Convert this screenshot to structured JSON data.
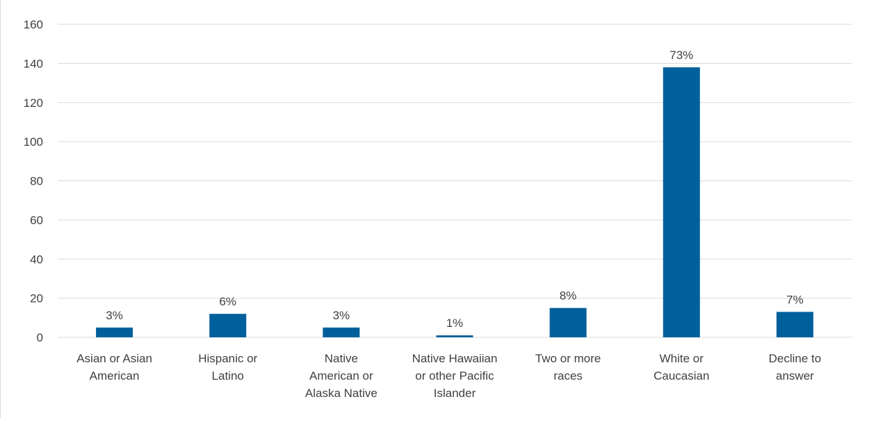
{
  "chart_data": {
    "type": "bar",
    "title": "",
    "xlabel": "",
    "ylabel": "",
    "categories": [
      [
        "Asian or Asian",
        "American"
      ],
      [
        "Hispanic or",
        "Latino"
      ],
      [
        "Native",
        "American or",
        "Alaska Native"
      ],
      [
        "Native Hawaiian",
        "or other Pacific",
        "Islander"
      ],
      [
        "Two or more",
        "races"
      ],
      [
        "White or",
        "Caucasian"
      ],
      [
        "Decline to",
        "answer"
      ]
    ],
    "values": [
      5,
      12,
      5,
      1,
      15,
      138,
      13
    ],
    "data_labels": [
      "3%",
      "6%",
      "3%",
      "1%",
      "8%",
      "73%",
      "7%"
    ],
    "ylim": [
      0,
      160
    ],
    "yticks": [
      0,
      20,
      40,
      60,
      80,
      100,
      120,
      140,
      160
    ],
    "grid": true,
    "legend": "none",
    "colors": {
      "bar": "#00609c",
      "grid": "#d9d9d9",
      "text": "#404040"
    }
  }
}
